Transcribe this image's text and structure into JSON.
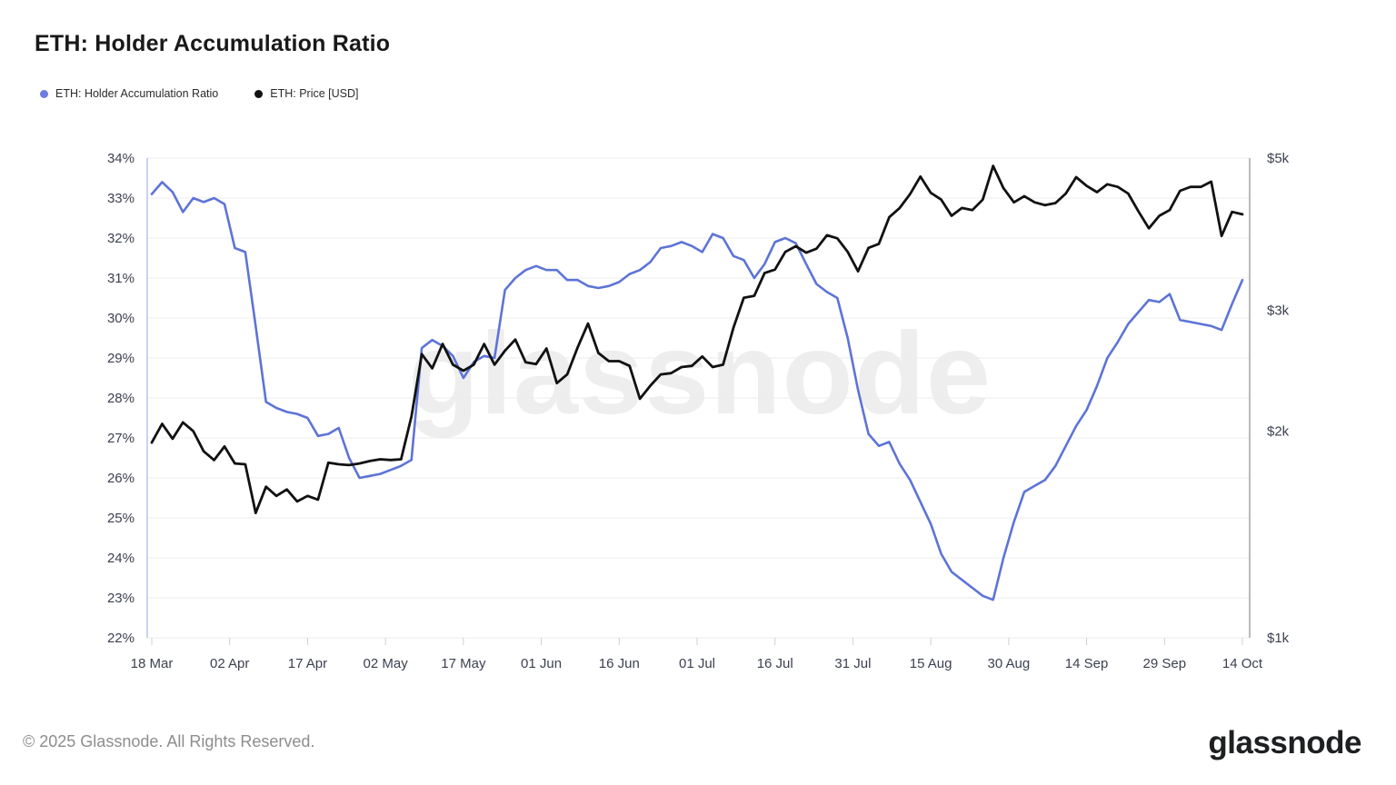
{
  "header": {
    "title": "ETH: Holder Accumulation Ratio"
  },
  "legend": {
    "items": [
      {
        "label": "ETH: Holder Accumulation Ratio",
        "color": "#6c7ce0"
      },
      {
        "label": "ETH: Price [USD]",
        "color": "#111111"
      }
    ]
  },
  "watermark": {
    "text": "glassnode"
  },
  "footer": {
    "copyright": "© 2025 Glassnode. All Rights Reserved.",
    "brand": "glassnode"
  },
  "chart_data": {
    "type": "line",
    "title": "ETH: Holder Accumulation Ratio",
    "grid": true,
    "legend_position": "top-left",
    "x_axis": {
      "start_day": 0,
      "end_day": 210,
      "tick_days": [
        0,
        15,
        30,
        45,
        60,
        75,
        90,
        105,
        120,
        135,
        150,
        165,
        180,
        195,
        210
      ],
      "tick_labels": [
        "18 Mar",
        "02 Apr",
        "17 Apr",
        "02 May",
        "17 May",
        "01 Jun",
        "16 Jun",
        "01 Jul",
        "16 Jul",
        "31 Jul",
        "15 Aug",
        "30 Aug",
        "14 Sep",
        "29 Sep",
        "14 Oct"
      ]
    },
    "left_axis": {
      "min": 22,
      "max": 34,
      "tick_step": 1,
      "unit": "%",
      "labels": [
        "34%",
        "33%",
        "32%",
        "31%",
        "30%",
        "29%",
        "28%",
        "27%",
        "26%",
        "25%",
        "24%",
        "23%",
        "22%"
      ]
    },
    "right_axis": {
      "scale": "log",
      "min": 1000,
      "max": 5000,
      "ticks": [
        {
          "value": 5000,
          "label": "$5k"
        },
        {
          "value": 3000,
          "label": "$3k"
        },
        {
          "value": 2000,
          "label": "$2k"
        },
        {
          "value": 1000,
          "label": "$1k"
        }
      ]
    },
    "series": [
      {
        "name": "ETH: Holder Accumulation Ratio",
        "axis": "left",
        "unit": "%",
        "color": "#5d74d6",
        "step_days": 2,
        "values": [
          33.1,
          33.4,
          33.15,
          32.65,
          33.0,
          32.9,
          33.0,
          32.85,
          31.75,
          31.65,
          29.8,
          27.9,
          27.75,
          27.65,
          27.6,
          27.5,
          27.05,
          27.1,
          27.25,
          26.5,
          26.0,
          26.05,
          26.1,
          26.2,
          26.3,
          26.45,
          29.25,
          29.45,
          29.3,
          29.05,
          28.5,
          28.9,
          29.05,
          29.0,
          30.7,
          31.0,
          31.2,
          31.3,
          31.2,
          31.2,
          30.95,
          30.95,
          30.8,
          30.75,
          30.8,
          30.9,
          31.1,
          31.2,
          31.4,
          31.75,
          31.8,
          31.9,
          31.8,
          31.65,
          32.1,
          32.0,
          31.55,
          31.45,
          31.0,
          31.35,
          31.9,
          32.0,
          31.87,
          31.35,
          30.85,
          30.65,
          30.5,
          29.5,
          28.2,
          27.1,
          26.8,
          26.9,
          26.35,
          25.95,
          25.4,
          24.85,
          24.1,
          23.65,
          23.45,
          23.25,
          23.05,
          22.95,
          24.0,
          24.9,
          25.65,
          25.8,
          25.95,
          26.3,
          26.8,
          27.3,
          27.7,
          28.3,
          29.0,
          29.4,
          29.85,
          30.15,
          30.45,
          30.4,
          30.6,
          29.95,
          29.9,
          29.85,
          29.8,
          29.7,
          30.35,
          30.95
        ]
      },
      {
        "name": "ETH: Price [USD]",
        "axis": "right",
        "unit": "USD",
        "color": "#111111",
        "step_days": 2,
        "values": [
          1925,
          2050,
          1950,
          2060,
          2000,
          1870,
          1815,
          1900,
          1795,
          1790,
          1520,
          1660,
          1610,
          1645,
          1580,
          1610,
          1590,
          1800,
          1790,
          1785,
          1795,
          1810,
          1820,
          1816,
          1820,
          2100,
          2590,
          2470,
          2680,
          2500,
          2450,
          2500,
          2680,
          2500,
          2620,
          2720,
          2520,
          2505,
          2640,
          2350,
          2420,
          2650,
          2870,
          2600,
          2530,
          2530,
          2490,
          2230,
          2330,
          2420,
          2430,
          2480,
          2490,
          2570,
          2480,
          2500,
          2830,
          3130,
          3150,
          3400,
          3440,
          3650,
          3720,
          3640,
          3690,
          3860,
          3820,
          3650,
          3420,
          3700,
          3750,
          4100,
          4230,
          4430,
          4700,
          4450,
          4350,
          4120,
          4230,
          4200,
          4350,
          4870,
          4520,
          4310,
          4400,
          4310,
          4270,
          4300,
          4440,
          4690,
          4555,
          4460,
          4580,
          4540,
          4440,
          4180,
          3950,
          4120,
          4200,
          4480,
          4540,
          4540,
          4620,
          3850,
          4175,
          4140
        ]
      }
    ]
  }
}
